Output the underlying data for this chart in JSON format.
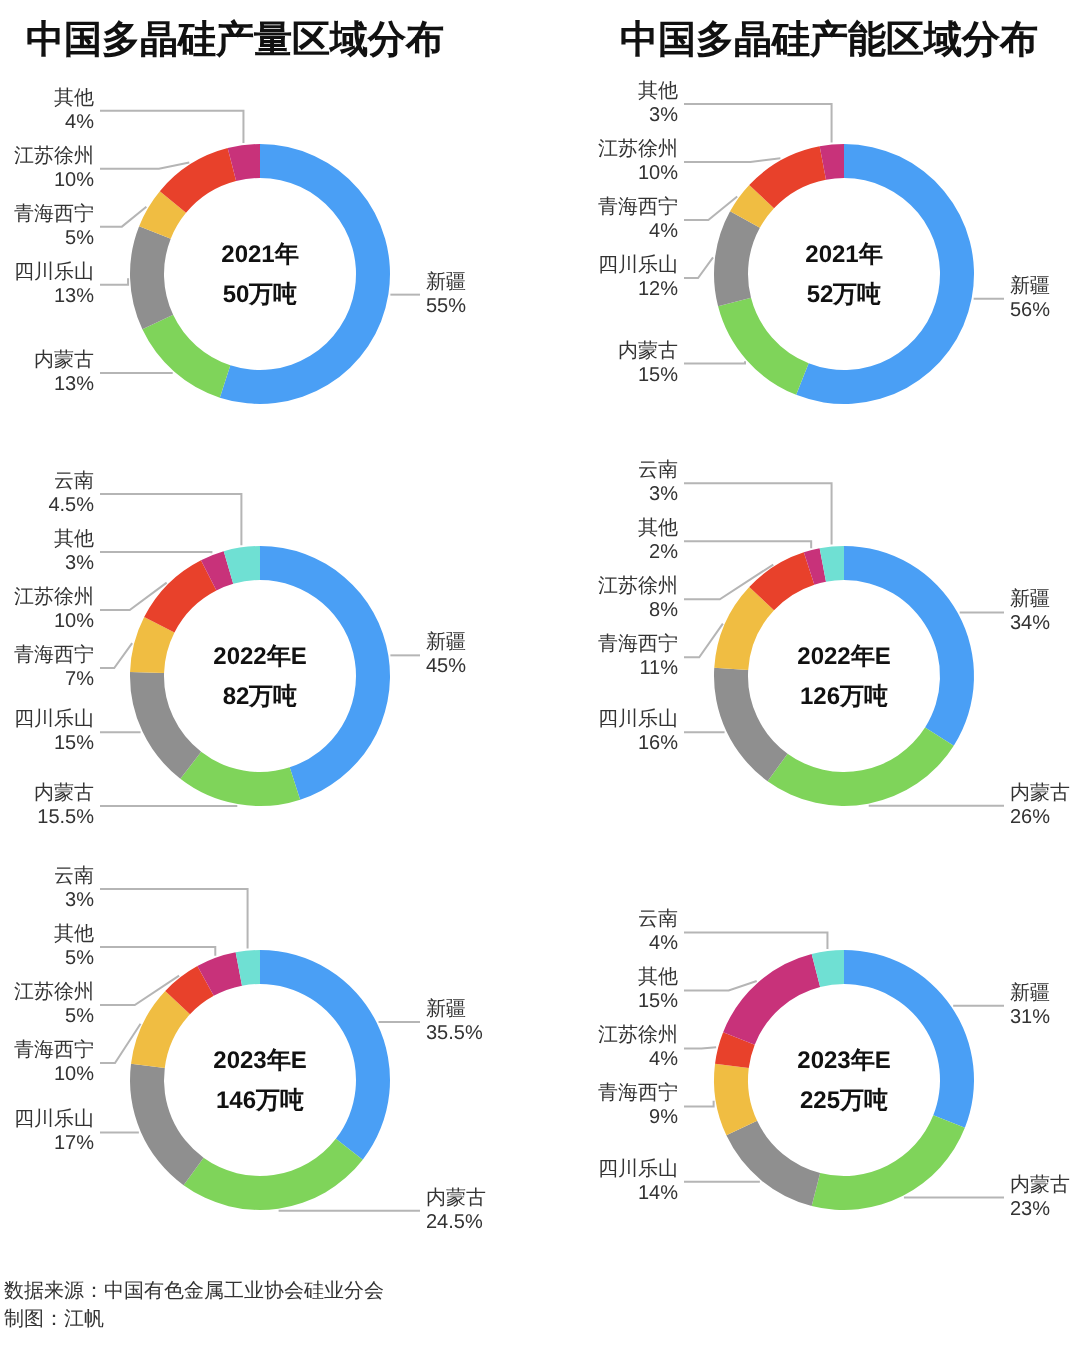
{
  "chart_data": [
    {
      "type": "donut",
      "title": "中国多晶硅产量区域分布",
      "subtitle": "2021年\n50万吨",
      "categories": [
        "新疆",
        "内蒙古",
        "四川乐山",
        "青海西宁",
        "江苏徐州",
        "其他"
      ],
      "values": [
        55,
        13,
        13,
        5,
        10,
        4
      ],
      "value_labels": [
        "55%",
        "13%",
        "13%",
        "5%",
        "10%",
        "4%"
      ],
      "colors": [
        "#4a9ff5",
        "#7fd45a",
        "#8f8f8f",
        "#f0bd42",
        "#e8412b",
        "#c8327a"
      ]
    },
    {
      "type": "donut",
      "title": "中国多晶硅产能区域分布",
      "subtitle": "2021年\n52万吨",
      "categories": [
        "新疆",
        "内蒙古",
        "四川乐山",
        "青海西宁",
        "江苏徐州",
        "其他"
      ],
      "values": [
        56,
        15,
        12,
        4,
        10,
        3
      ],
      "value_labels": [
        "56%",
        "15%",
        "12%",
        "4%",
        "10%",
        "3%"
      ],
      "colors": [
        "#4a9ff5",
        "#7fd45a",
        "#8f8f8f",
        "#f0bd42",
        "#e8412b",
        "#c8327a"
      ]
    },
    {
      "type": "donut",
      "subtitle": "2022年E\n82万吨",
      "categories": [
        "新疆",
        "内蒙古",
        "四川乐山",
        "青海西宁",
        "江苏徐州",
        "其他",
        "云南"
      ],
      "values": [
        45,
        15.5,
        15,
        7,
        10,
        3,
        4.5
      ],
      "value_labels": [
        "45%",
        "15.5%",
        "15%",
        "7%",
        "10%",
        "3%",
        "4.5%"
      ],
      "colors": [
        "#4a9ff5",
        "#7fd45a",
        "#8f8f8f",
        "#f0bd42",
        "#e8412b",
        "#c8327a",
        "#6fe0d3"
      ]
    },
    {
      "type": "donut",
      "subtitle": "2022年E\n126万吨",
      "categories": [
        "新疆",
        "内蒙古",
        "四川乐山",
        "青海西宁",
        "江苏徐州",
        "其他",
        "云南"
      ],
      "values": [
        34,
        26,
        16,
        11,
        8,
        2,
        3
      ],
      "value_labels": [
        "34%",
        "26%",
        "16%",
        "11%",
        "8%",
        "2%",
        "3%"
      ],
      "colors": [
        "#4a9ff5",
        "#7fd45a",
        "#8f8f8f",
        "#f0bd42",
        "#e8412b",
        "#c8327a",
        "#6fe0d3"
      ]
    },
    {
      "type": "donut",
      "subtitle": "2023年E\n146万吨",
      "categories": [
        "新疆",
        "内蒙古",
        "四川乐山",
        "青海西宁",
        "江苏徐州",
        "其他",
        "云南"
      ],
      "values": [
        35.5,
        24.5,
        17,
        10,
        5,
        5,
        3
      ],
      "value_labels": [
        "35.5%",
        "24.5%",
        "17%",
        "10%",
        "5%",
        "5%",
        "3%"
      ],
      "colors": [
        "#4a9ff5",
        "#7fd45a",
        "#8f8f8f",
        "#f0bd42",
        "#e8412b",
        "#c8327a",
        "#6fe0d3"
      ],
      "annotations": [
        "数据来源：中国有色金属工业协会硅业分会",
        "制图：江帆"
      ]
    },
    {
      "type": "donut",
      "subtitle": "2023年E\n225万吨",
      "categories": [
        "新疆",
        "内蒙古",
        "四川乐山",
        "青海西宁",
        "江苏徐州",
        "其他",
        "云南"
      ],
      "values": [
        31,
        23,
        14,
        9,
        4,
        15,
        4
      ],
      "value_labels": [
        "31%",
        "23%",
        "14%",
        "9%",
        "4%",
        "15%",
        "4%"
      ],
      "colors": [
        "#4a9ff5",
        "#7fd45a",
        "#8f8f8f",
        "#f0bd42",
        "#e8412b",
        "#c8327a",
        "#6fe0d3"
      ]
    }
  ]
}
